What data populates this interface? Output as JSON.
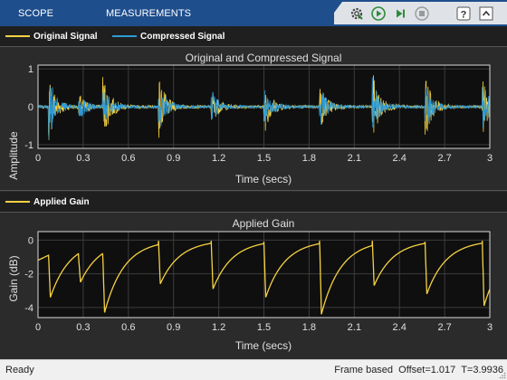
{
  "toolstrip": {
    "tabs": [
      "SCOPE",
      "MEASUREMENTS"
    ],
    "buttons": [
      "settings-icon",
      "run-icon",
      "step-forward-icon",
      "stop-icon",
      "help-icon",
      "collapse-toolstrip-icon"
    ]
  },
  "legends": {
    "top": [
      {
        "label": "Original Signal",
        "color": "#f5d142"
      },
      {
        "label": "Compressed Signal",
        "color": "#2e9bd6"
      }
    ],
    "bottom": [
      {
        "label": "Applied Gain",
        "color": "#f5d142"
      }
    ]
  },
  "chart_data": [
    {
      "type": "line",
      "title": "Original and Compressed Signal",
      "xlabel": "Time (secs)",
      "ylabel": "Amplitude",
      "xlim": [
        0,
        3.0
      ],
      "ylim": [
        -1.1,
        1.1
      ],
      "xticks": [
        "0",
        "0.3",
        "0.6",
        "0.9",
        "1.2",
        "1.5",
        "1.8",
        "2.1",
        "2.4",
        "2.7",
        "3"
      ],
      "yticks": [
        "-1",
        "0",
        "1"
      ],
      "grid": true,
      "background": "#0f0f0f",
      "transient_times": [
        0.07,
        0.27,
        0.43,
        0.8,
        1.15,
        1.5,
        1.87,
        2.22,
        2.57,
        2.95
      ],
      "original_peaks": [
        0.95,
        0.35,
        0.95,
        0.85,
        0.45,
        0.75,
        0.65,
        0.95,
        0.85,
        0.75
      ],
      "compressed_peaks": [
        0.9,
        0.4,
        0.55,
        0.75,
        0.45,
        0.65,
        0.55,
        0.75,
        0.65,
        0.75
      ],
      "series": [
        {
          "name": "Original Signal",
          "color": "#f5d142"
        },
        {
          "name": "Compressed Signal",
          "color": "#2e9bd6"
        }
      ]
    },
    {
      "type": "line",
      "title": "Applied Gain",
      "xlabel": "Time (secs)",
      "ylabel": "Gain (dB)",
      "xlim": [
        0,
        3.0
      ],
      "ylim": [
        -4.6,
        0.5
      ],
      "xticks": [
        "0",
        "0.3",
        "0.6",
        "0.9",
        "1.2",
        "1.5",
        "1.8",
        "2.1",
        "2.4",
        "2.7",
        "3"
      ],
      "yticks": [
        "-4",
        "-2",
        "0"
      ],
      "grid": true,
      "background": "#0f0f0f",
      "gain_start": -1.2,
      "gain_drops": [
        {
          "t": 0.07,
          "start": -0.9,
          "min": -3.4
        },
        {
          "t": 0.27,
          "start": -1.1,
          "min": -2.5
        },
        {
          "t": 0.43,
          "start": -0.9,
          "min": -4.3
        },
        {
          "t": 0.8,
          "start": -0.05,
          "min": -2.6
        },
        {
          "t": 1.15,
          "start": -0.05,
          "min": -2.9
        },
        {
          "t": 1.5,
          "start": -0.1,
          "min": -3.4
        },
        {
          "t": 1.87,
          "start": -0.05,
          "min": -4.4
        },
        {
          "t": 2.22,
          "start": -0.05,
          "min": -2.7
        },
        {
          "t": 2.57,
          "start": -0.1,
          "min": -3.2
        },
        {
          "t": 2.95,
          "start": -0.05,
          "min": -3.9
        }
      ],
      "series": [
        {
          "name": "Applied Gain",
          "color": "#f5d142"
        }
      ]
    }
  ],
  "status": {
    "left": "Ready",
    "mode": "Frame based",
    "offset": "Offset=1.017",
    "time": "T=3.9936"
  }
}
